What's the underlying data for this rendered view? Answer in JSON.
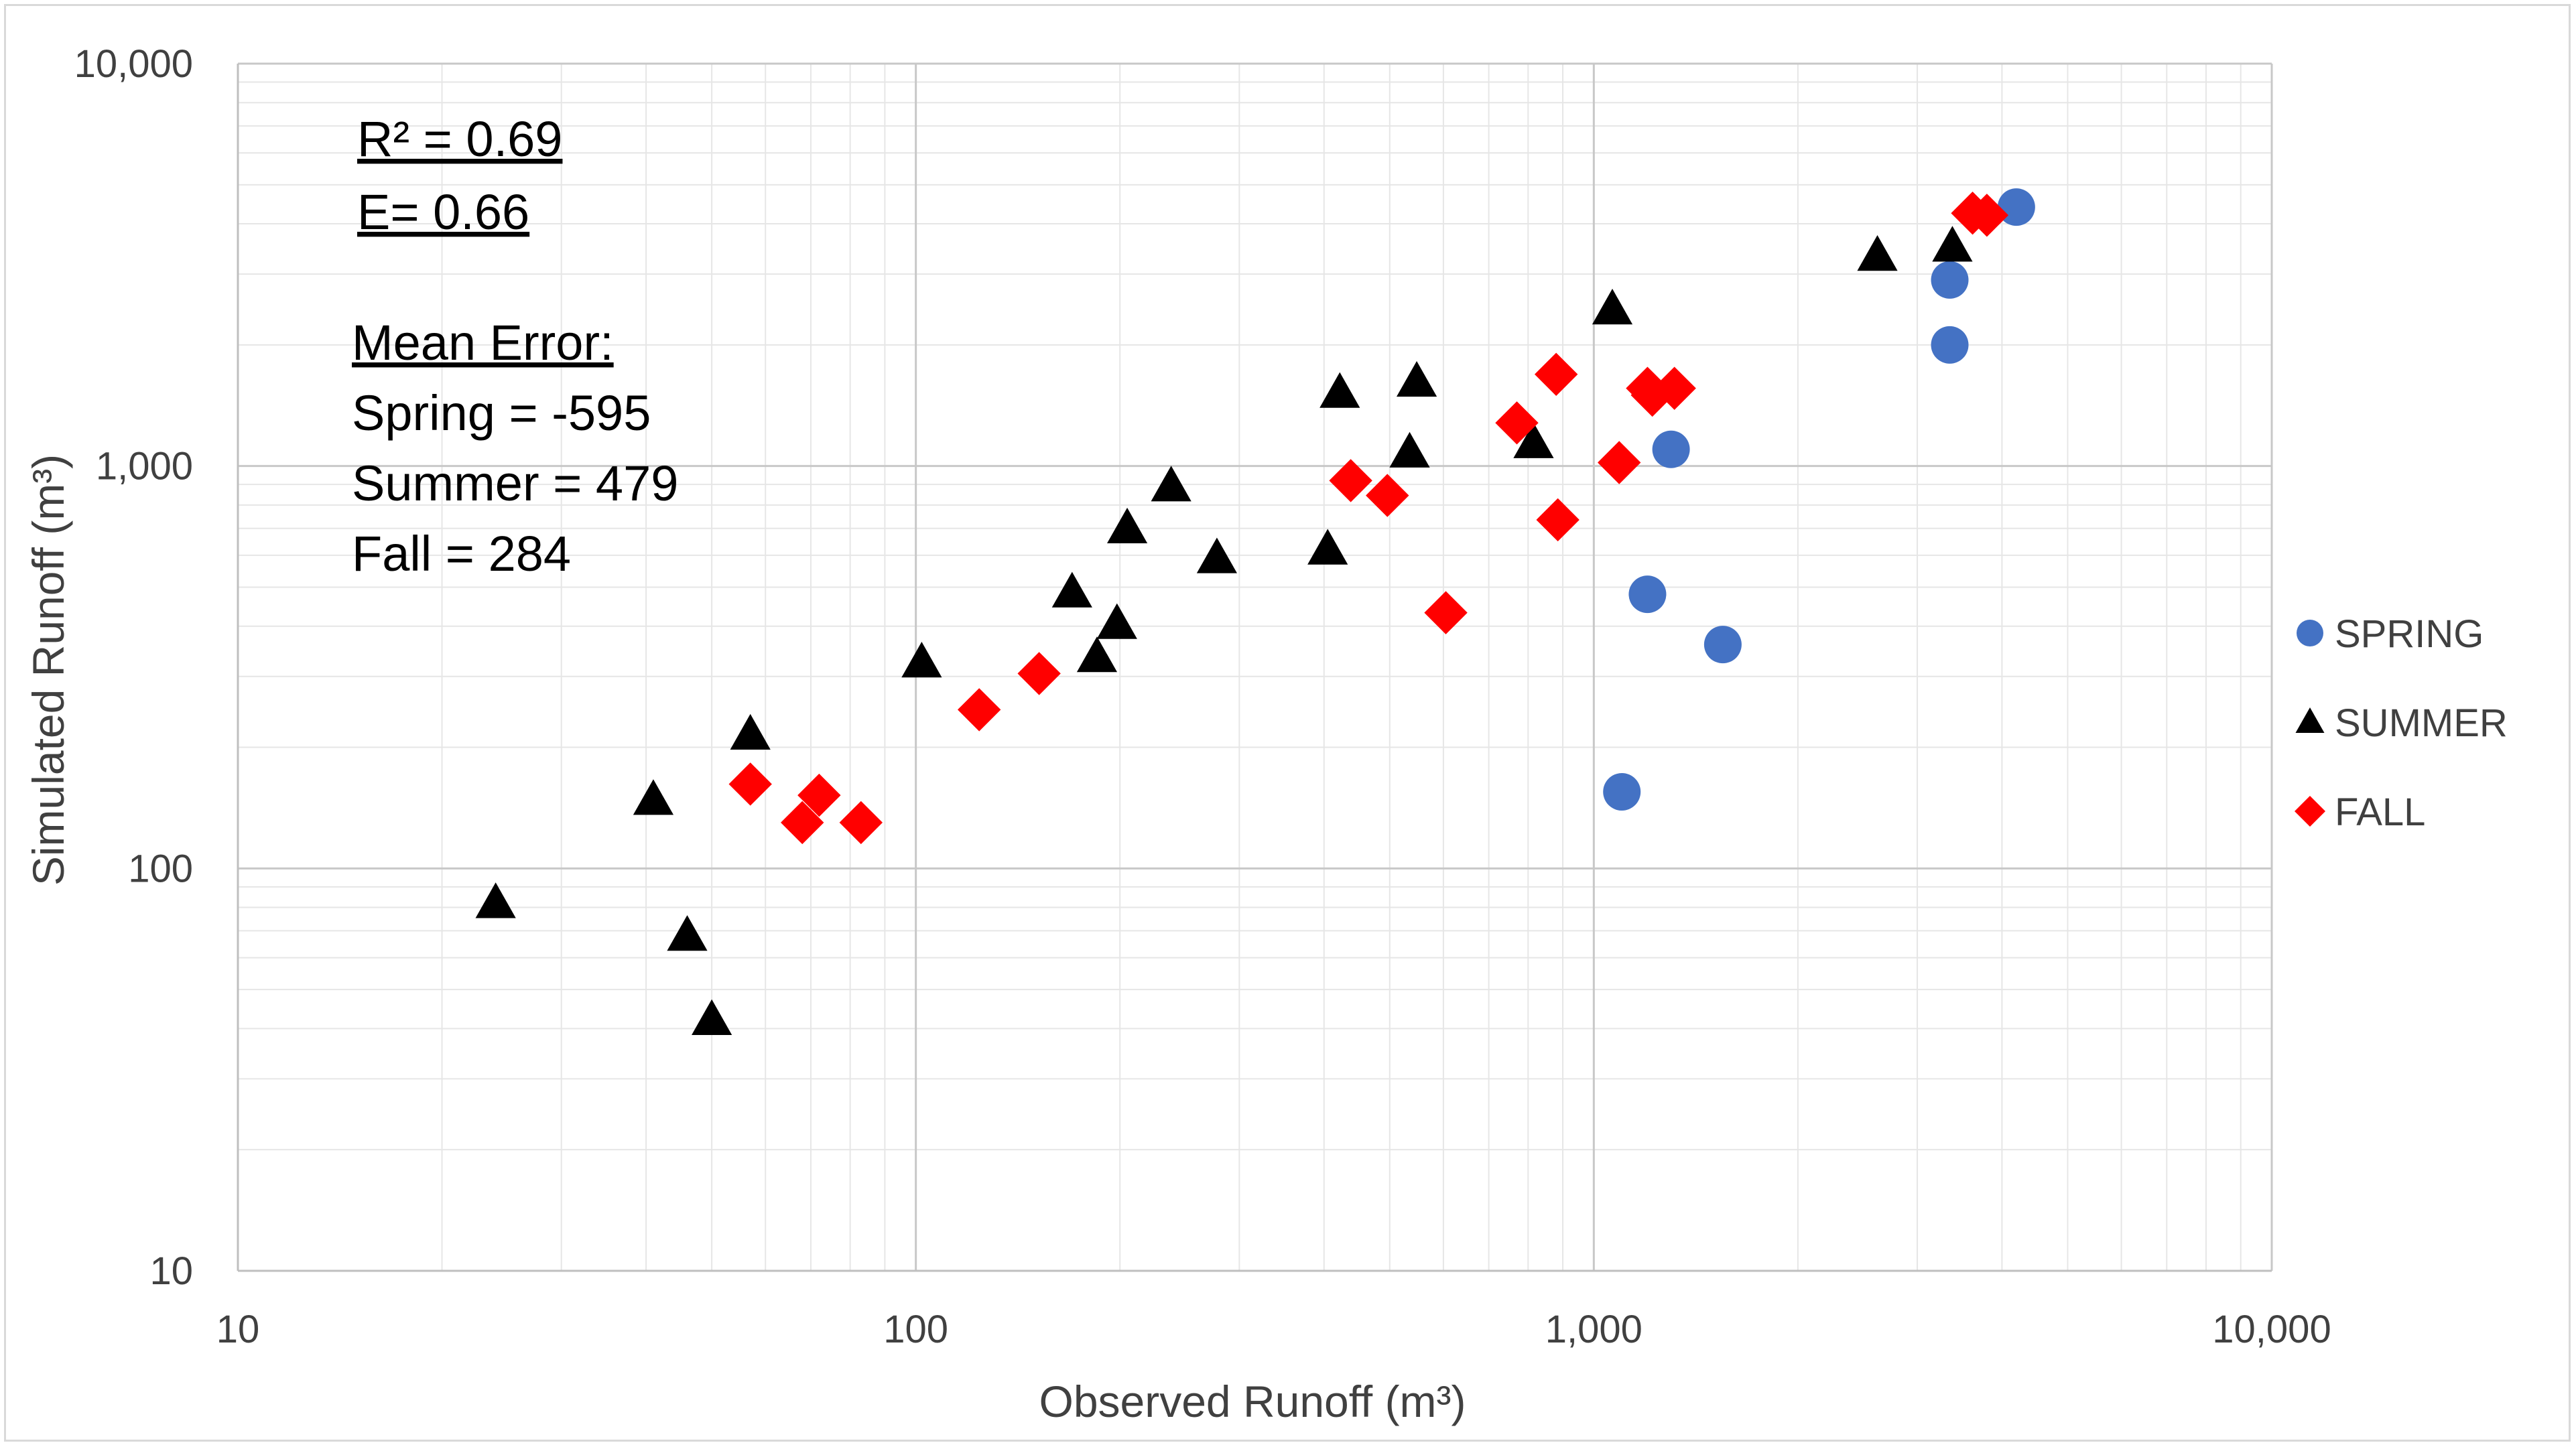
{
  "chart_data": {
    "type": "scatter",
    "title": "",
    "xlabel": "Observed Runoff (m³)",
    "ylabel": "Simulated Runoff (m³)",
    "xscale": "log",
    "yscale": "log",
    "xlim": [
      10,
      10000
    ],
    "ylim": [
      10,
      10000
    ],
    "x_ticks": [
      "10",
      "100",
      "1,000",
      "10,000"
    ],
    "y_ticks": [
      "10",
      "100",
      "1,000",
      "10,000"
    ],
    "grid": "major and minor",
    "legend_position": "right",
    "annotations": {
      "r2": "R² = 0.69",
      "e": "E= 0.66",
      "mean_error_title": "Mean Error:",
      "spring": "Spring = -595",
      "summer": "Summer = 479",
      "fall": "Fall = 284"
    },
    "series": [
      {
        "name": "SPRING",
        "marker": "circle",
        "color": "#4472C4",
        "points": [
          [
            1100,
            155
          ],
          [
            1200,
            480
          ],
          [
            1300,
            1100
          ],
          [
            1550,
            360
          ],
          [
            3350,
            2000
          ],
          [
            3350,
            2900
          ],
          [
            4200,
            4400
          ]
        ]
      },
      {
        "name": "SUMMER",
        "marker": "triangle",
        "color": "#000000",
        "points": [
          [
            24,
            82
          ],
          [
            41,
            148
          ],
          [
            46,
            68
          ],
          [
            50,
            42
          ],
          [
            57,
            215
          ],
          [
            102,
            325
          ],
          [
            170,
            485
          ],
          [
            185,
            335
          ],
          [
            198,
            405
          ],
          [
            205,
            700
          ],
          [
            238,
            890
          ],
          [
            278,
            590
          ],
          [
            405,
            620
          ],
          [
            422,
            1520
          ],
          [
            535,
            1080
          ],
          [
            548,
            1620
          ],
          [
            815,
            1140
          ],
          [
            1065,
            2450
          ],
          [
            2620,
            3330
          ],
          [
            3380,
            3510
          ]
        ]
      },
      {
        "name": "FALL",
        "marker": "diamond",
        "color": "#FF0000",
        "points": [
          [
            57,
            162
          ],
          [
            68,
            130
          ],
          [
            72,
            152
          ],
          [
            83,
            130
          ],
          [
            124,
            248
          ],
          [
            152,
            305
          ],
          [
            438,
            920
          ],
          [
            496,
            845
          ],
          [
            605,
            432
          ],
          [
            770,
            1280
          ],
          [
            880,
            1690
          ],
          [
            885,
            735
          ],
          [
            1090,
            1020
          ],
          [
            1200,
            1560
          ],
          [
            1220,
            1500
          ],
          [
            1315,
            1560
          ],
          [
            3620,
            4250
          ],
          [
            3800,
            4200
          ]
        ]
      }
    ]
  }
}
